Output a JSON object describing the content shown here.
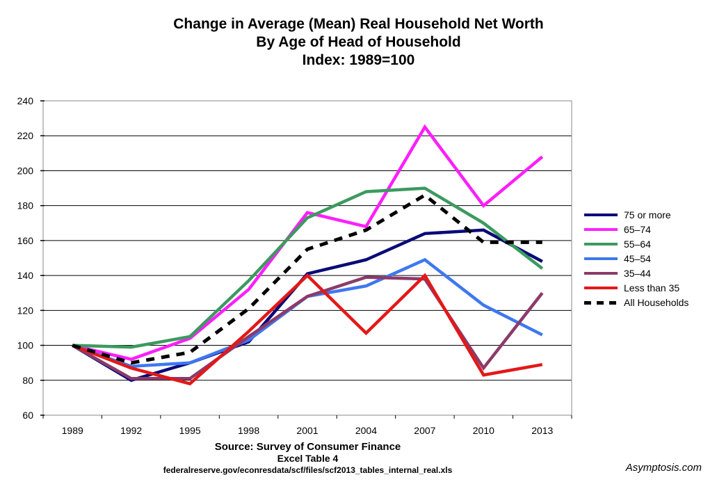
{
  "title_lines": [
    "Change in Average (Mean) Real Household Net Worth",
    "By Age of Head of Household",
    "Index: 1989=100"
  ],
  "source_lines": [
    "Source: Survey of Consumer Finance",
    "Excel Table 4",
    "federalreserve.gov/econresdata/scf/files/scf2013_tables_internal_real.xls"
  ],
  "brand": "Asymptosis.com",
  "chart_data": {
    "type": "line",
    "title": "Change in Average (Mean) Real Household Net Worth By Age of Head of Household Index: 1989=100",
    "x": [
      "1989",
      "1992",
      "1995",
      "1998",
      "2001",
      "2004",
      "2007",
      "2010",
      "2013"
    ],
    "ylim": [
      60,
      240
    ],
    "yticks": [
      60,
      80,
      100,
      120,
      140,
      160,
      180,
      200,
      220,
      240
    ],
    "grid": true,
    "legend_position": "right",
    "series": [
      {
        "name": "75 or more",
        "color": "#0a0a78",
        "dash": false,
        "values": [
          100,
          80,
          90,
          102,
          141,
          149,
          164,
          166,
          148
        ]
      },
      {
        "name": "65–74",
        "color": "#ff1eff",
        "dash": false,
        "values": [
          100,
          92,
          104,
          132,
          176,
          168,
          225,
          180,
          208
        ]
      },
      {
        "name": "55–64",
        "color": "#3c9a5f",
        "dash": false,
        "values": [
          100,
          99,
          105,
          137,
          173,
          188,
          190,
          170,
          144
        ]
      },
      {
        "name": "45–54",
        "color": "#3e78ef",
        "dash": false,
        "values": [
          100,
          88,
          90,
          103,
          128,
          134,
          149,
          123,
          106
        ]
      },
      {
        "name": "35–44",
        "color": "#8b3b6a",
        "dash": false,
        "values": [
          100,
          81,
          81,
          105,
          128,
          139,
          138,
          87,
          130
        ]
      },
      {
        "name": "Less than 35",
        "color": "#e31818",
        "dash": false,
        "values": [
          100,
          87,
          78,
          108,
          140,
          107,
          140,
          83,
          89
        ]
      },
      {
        "name": "All Households",
        "color": "#000000",
        "dash": true,
        "values": [
          100,
          90,
          96,
          121,
          155,
          166,
          186,
          159,
          159
        ]
      }
    ]
  }
}
